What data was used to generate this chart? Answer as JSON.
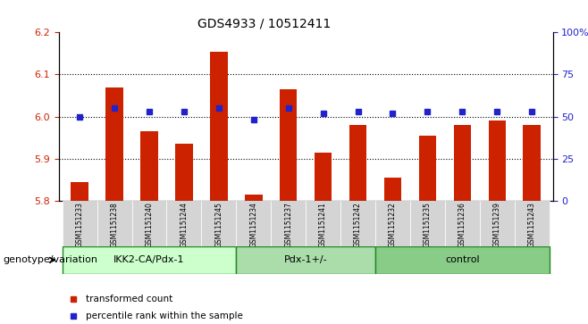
{
  "title": "GDS4933 / 10512411",
  "samples": [
    "GSM1151233",
    "GSM1151238",
    "GSM1151240",
    "GSM1151244",
    "GSM1151245",
    "GSM1151234",
    "GSM1151237",
    "GSM1151241",
    "GSM1151242",
    "GSM1151232",
    "GSM1151235",
    "GSM1151236",
    "GSM1151239",
    "GSM1151243"
  ],
  "bar_values": [
    5.845,
    6.07,
    5.965,
    5.935,
    6.155,
    5.815,
    6.065,
    5.915,
    5.98,
    5.855,
    5.955,
    5.98,
    5.99,
    5.98
  ],
  "dot_values": [
    50,
    55,
    53,
    53,
    55,
    48,
    55,
    52,
    53,
    52,
    53,
    53,
    53,
    53
  ],
  "bar_bottom": 5.8,
  "ylim_left": [
    5.8,
    6.2
  ],
  "ylim_right": [
    0,
    100
  ],
  "yticks_left": [
    5.8,
    5.9,
    6.0,
    6.1,
    6.2
  ],
  "yticks_right": [
    0,
    25,
    50,
    75,
    100
  ],
  "ytick_labels_right": [
    "0",
    "25",
    "50",
    "75",
    "100%"
  ],
  "bar_color": "#CC2200",
  "dot_color": "#2222CC",
  "groups": [
    {
      "label": "IKK2-CA/Pdx-1",
      "start": 0,
      "end": 5
    },
    {
      "label": "Pdx-1+/-",
      "start": 5,
      "end": 9
    },
    {
      "label": "control",
      "start": 9,
      "end": 14
    }
  ],
  "group_colors": [
    "#ccffcc",
    "#aaddaa",
    "#88cc88"
  ],
  "xlabel_label": "genotype/variation",
  "legend_items": [
    "transformed count",
    "percentile rank within the sample"
  ],
  "grid_dotted_at": [
    5.9,
    6.0,
    6.1
  ]
}
